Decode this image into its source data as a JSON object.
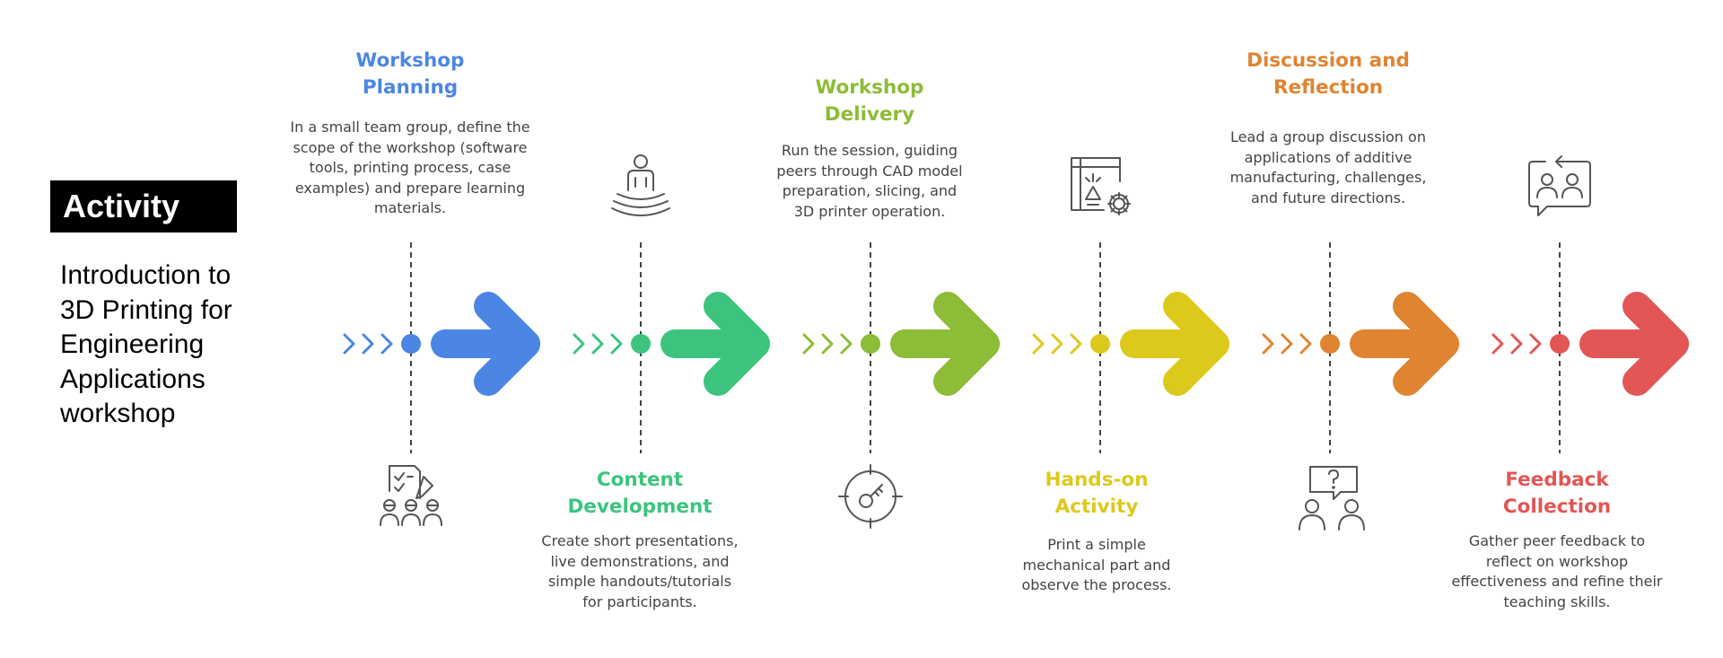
{
  "activity": {
    "label": "Activity",
    "workshop_lines": [
      "Introduction to",
      "3D Printing for",
      "Engineering",
      "Applications",
      "workshop"
    ]
  },
  "steps": [
    {
      "title_lines": [
        "Workshop",
        "Planning"
      ],
      "desc_lines": [
        "In a small team group, define the",
        "scope of the workshop (software",
        "tools, printing process, case",
        "examples) and prepare learning",
        "materials."
      ],
      "color": "#4B86E4",
      "icon": "checklist-team-icon"
    },
    {
      "title_lines": [
        "Content",
        "Development"
      ],
      "desc_lines": [
        "Create short presentations,",
        "live demonstrations, and",
        "simple handouts/tutorials",
        "for participants."
      ],
      "color": "#3CC47E",
      "icon": "meditating-person-icon"
    },
    {
      "title_lines": [
        "Workshop",
        "Delivery"
      ],
      "desc_lines": [
        "Run the session, guiding",
        "peers through CAD model",
        "preparation, slicing, and",
        "3D printer operation."
      ],
      "color": "#8DBC36",
      "icon": "target-key-icon"
    },
    {
      "title_lines": [
        "Hands-on",
        "Activity"
      ],
      "desc_lines": [
        "Print a simple",
        "mechanical part and",
        "observe the process."
      ],
      "color": "#DDC91C",
      "icon": "design-gear-icon"
    },
    {
      "title_lines": [
        "Discussion and",
        "Reflection"
      ],
      "desc_lines": [
        "Lead a group discussion on",
        "applications of additive",
        "manufacturing, challenges,",
        "and future directions."
      ],
      "color": "#E08431",
      "icon": "question-discussion-icon"
    },
    {
      "title_lines": [
        "Feedback",
        "Collection"
      ],
      "desc_lines": [
        "Gather peer feedback to",
        "reflect on workshop",
        "effectiveness and refine their",
        "teaching skills."
      ],
      "color": "#E25656",
      "icon": "feedback-users-icon"
    }
  ]
}
